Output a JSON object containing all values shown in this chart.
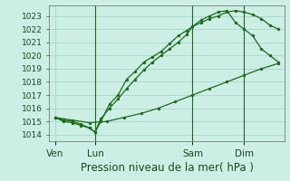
{
  "title": "Pression niveau de la mer( hPa )",
  "bg_color": "#cceee4",
  "grid_color": "#aad4c8",
  "line_color": "#1a6b1a",
  "ylim": [
    1013.5,
    1023.8
  ],
  "yticks": [
    1014,
    1015,
    1016,
    1017,
    1018,
    1019,
    1020,
    1021,
    1022,
    1023
  ],
  "xtick_labels": [
    "Ven",
    "Lun",
    "Sam",
    "Dim"
  ],
  "xtick_positions": [
    0,
    14,
    48,
    66
  ],
  "xlim": [
    -2,
    80
  ],
  "vline_positions": [
    14,
    48,
    66
  ],
  "series1_x": [
    0,
    3,
    6,
    9,
    12,
    14,
    16,
    19,
    22,
    25,
    28,
    31,
    34,
    37,
    40,
    43,
    46,
    48,
    51,
    54,
    57,
    60,
    63,
    66,
    69,
    72,
    75,
    78
  ],
  "series1_y": [
    1015.3,
    1015.1,
    1015.0,
    1014.8,
    1014.5,
    1014.2,
    1015.0,
    1016.3,
    1017.0,
    1018.2,
    1018.8,
    1019.5,
    1019.9,
    1020.3,
    1020.9,
    1021.5,
    1021.9,
    1022.2,
    1022.5,
    1022.8,
    1023.0,
    1023.3,
    1023.4,
    1023.3,
    1023.1,
    1022.8,
    1022.3,
    1022.0
  ],
  "series2_x": [
    0,
    3,
    6,
    9,
    12,
    14,
    16,
    19,
    22,
    25,
    28,
    31,
    34,
    37,
    40,
    43,
    46,
    48,
    51,
    54,
    57,
    60,
    63,
    66,
    69,
    72,
    75,
    78
  ],
  "series2_y": [
    1015.3,
    1015.0,
    1014.9,
    1014.7,
    1014.5,
    1014.2,
    1015.2,
    1016.0,
    1016.7,
    1017.5,
    1018.2,
    1018.9,
    1019.5,
    1020.0,
    1020.5,
    1021.0,
    1021.6,
    1022.2,
    1022.7,
    1023.0,
    1023.3,
    1023.4,
    1022.5,
    1022.0,
    1021.5,
    1020.5,
    1020.0,
    1019.5
  ],
  "series3_x": [
    0,
    6,
    12,
    18,
    24,
    30,
    36,
    42,
    48,
    54,
    60,
    66,
    72,
    78
  ],
  "series3_y": [
    1015.3,
    1015.1,
    1014.9,
    1015.0,
    1015.3,
    1015.6,
    1016.0,
    1016.5,
    1017.0,
    1017.5,
    1018.0,
    1018.5,
    1019.0,
    1019.4
  ],
  "xlabel_fontsize": 8.5,
  "ytick_fontsize": 6.5,
  "xtick_fontsize": 7.5
}
